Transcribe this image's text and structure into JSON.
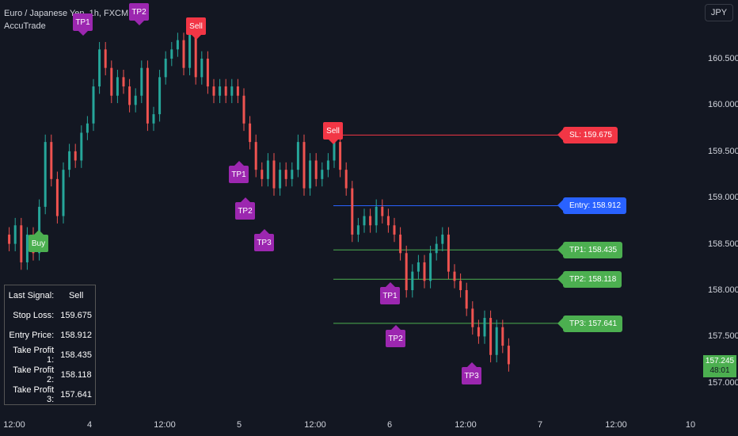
{
  "header": {
    "title": "Euro / Japanese Yen, 1h, FXCM",
    "indicator": "AccuTrade"
  },
  "currency_button": "JPY",
  "y_axis": {
    "ticks": [
      {
        "label": "160.500",
        "value": 160.5
      },
      {
        "label": "160.000",
        "value": 160.0
      },
      {
        "label": "159.500",
        "value": 159.5
      },
      {
        "label": "159.000",
        "value": 159.0
      },
      {
        "label": "158.500",
        "value": 158.5
      },
      {
        "label": "158.000",
        "value": 158.0
      },
      {
        "label": "157.500",
        "value": 157.5
      },
      {
        "label": "157.000",
        "value": 157.0
      }
    ]
  },
  "x_axis": {
    "ticks": [
      "12:00",
      "4",
      "12:00",
      "5",
      "12:00",
      "6",
      "12:00",
      "7",
      "12:00",
      "10"
    ]
  },
  "last_price": {
    "price": "157.245",
    "countdown": "48:01"
  },
  "levels": [
    {
      "key": "sl",
      "label": "SL: 159.675",
      "value": 159.675,
      "color": "#f23645"
    },
    {
      "key": "entry",
      "label": "Entry: 158.912",
      "value": 158.912,
      "color": "#2962ff"
    },
    {
      "key": "tp1",
      "label": "TP1: 158.435",
      "value": 158.435,
      "color": "#4caf50"
    },
    {
      "key": "tp2",
      "label": "TP2: 158.118",
      "value": 158.118,
      "color": "#4caf50"
    },
    {
      "key": "tp3",
      "label": "TP3: 157.641",
      "value": 157.641,
      "color": "#4caf50"
    }
  ],
  "signal_labels": [
    {
      "text": "TP1",
      "color": "#9c27b0",
      "dir": "down"
    },
    {
      "text": "TP2",
      "color": "#9c27b0",
      "dir": "down"
    },
    {
      "text": "Sell",
      "color": "#f23645",
      "dir": "down"
    },
    {
      "text": "Buy",
      "color": "#4caf50",
      "dir": "up"
    },
    {
      "text": "TP1",
      "color": "#9c27b0",
      "dir": "up"
    },
    {
      "text": "TP2",
      "color": "#9c27b0",
      "dir": "up"
    },
    {
      "text": "TP3",
      "color": "#9c27b0",
      "dir": "up"
    },
    {
      "text": "Sell",
      "color": "#f23645",
      "dir": "down"
    },
    {
      "text": "TP1",
      "color": "#9c27b0",
      "dir": "up"
    },
    {
      "text": "TP2",
      "color": "#9c27b0",
      "dir": "up"
    },
    {
      "text": "TP3",
      "color": "#9c27b0",
      "dir": "up"
    }
  ],
  "signal_table": {
    "rows": [
      {
        "key": "Last Signal:",
        "value": "Sell"
      },
      {
        "key": "Stop Loss:",
        "value": "159.675"
      },
      {
        "key": "Entry Price:",
        "value": "158.912"
      },
      {
        "key": "Take Profit 1:",
        "value": "158.435"
      },
      {
        "key": "Take Profit 2:",
        "value": "158.118"
      },
      {
        "key": "Take Profit 3:",
        "value": "157.641"
      }
    ]
  },
  "colors": {
    "up": "#26a69a",
    "down": "#ef5350",
    "background": "#131722"
  }
}
